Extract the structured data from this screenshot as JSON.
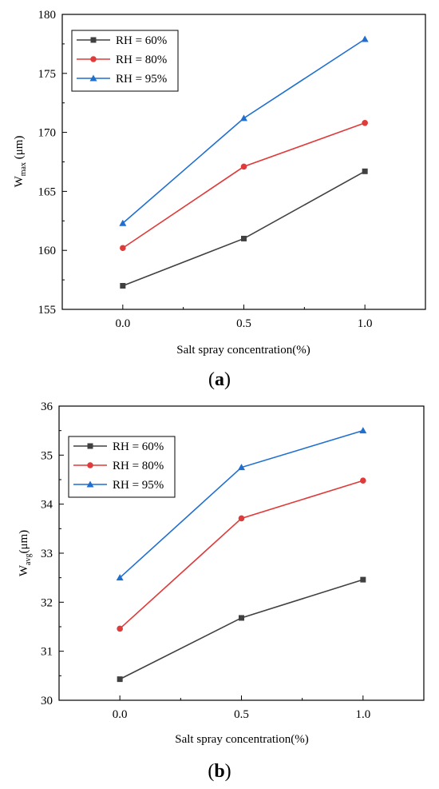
{
  "chart_data": [
    {
      "type": "line",
      "panel_label": "a",
      "x": [
        0.0,
        0.5,
        1.0
      ],
      "x_tick_labels": [
        "0.0",
        "0.5",
        "1.0"
      ],
      "xlabel": "Salt spray concentration(%)",
      "ylabel": {
        "base": "W",
        "sub": "max",
        "unit": " (μm)"
      },
      "xlim": [
        -0.25,
        1.25
      ],
      "ylim": [
        155,
        180
      ],
      "yticks": [
        155,
        160,
        165,
        170,
        175,
        180
      ],
      "grid": false,
      "legend_position": "top-left",
      "series": [
        {
          "name": "RH = 60%",
          "color": "#404040",
          "marker": "square",
          "values": [
            157.0,
            161.0,
            166.7
          ]
        },
        {
          "name": "RH = 80%",
          "color": "#e03a3a",
          "marker": "circle",
          "values": [
            160.2,
            167.1,
            170.8
          ]
        },
        {
          "name": "RH = 95%",
          "color": "#1f6fd1",
          "marker": "triangle",
          "values": [
            162.3,
            171.2,
            177.9
          ]
        }
      ]
    },
    {
      "type": "line",
      "panel_label": "b",
      "x": [
        0.0,
        0.5,
        1.0
      ],
      "x_tick_labels": [
        "0.0",
        "0.5",
        "1.0"
      ],
      "xlabel": "Salt spray concentration(%)",
      "ylabel": {
        "base": "W",
        "sub": "avg",
        "unit": "(μm)"
      },
      "xlim": [
        -0.25,
        1.25
      ],
      "ylim": [
        30,
        36
      ],
      "yticks": [
        30,
        31,
        32,
        33,
        34,
        35,
        36
      ],
      "grid": false,
      "legend_position": "top-left",
      "series": [
        {
          "name": "RH = 60%",
          "color": "#404040",
          "marker": "square",
          "values": [
            30.43,
            31.68,
            32.46
          ]
        },
        {
          "name": "RH = 80%",
          "color": "#e03a3a",
          "marker": "circle",
          "values": [
            31.46,
            33.71,
            34.48
          ]
        },
        {
          "name": "RH = 95%",
          "color": "#1f6fd1",
          "marker": "triangle",
          "values": [
            32.5,
            34.75,
            35.5
          ]
        }
      ]
    }
  ]
}
